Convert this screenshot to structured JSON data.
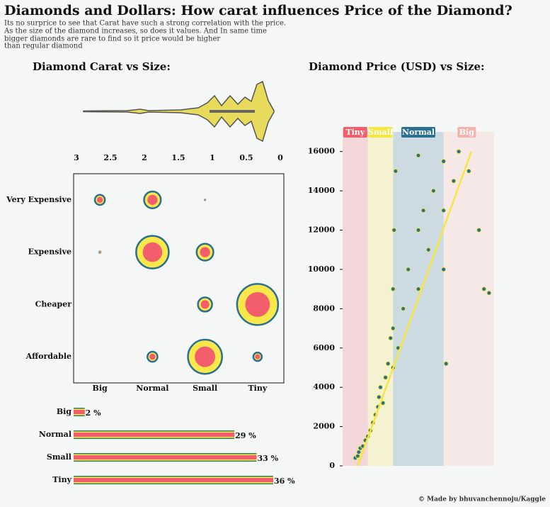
{
  "title": "Diamonds and Dollars: How carat influences Price of the Diamond?",
  "subtitle_lines": [
    "Its no surprice to see that Carat have such a strong correlation with the price.",
    "As the size of the diamond increases, so does it values. And In same time",
    "bigger diamonds are rare to find so it price would be higher",
    "than regular diamond"
  ],
  "credit": "© Made by bhuvanchennoju/Kaggle",
  "chart_data": [
    {
      "type": "violin",
      "title": "Diamond Carat vs Size:",
      "xlim": [
        3,
        0
      ],
      "xticks": [
        3,
        2.5,
        2,
        1.5,
        1,
        0.5,
        0
      ],
      "color": "#e8da5a"
    },
    {
      "type": "bubble",
      "x_categories": [
        "Big",
        "Normal",
        "Small",
        "Tiny"
      ],
      "y_categories": [
        "Very Expensive",
        "Expensive",
        "Cheaper",
        "Affordable"
      ],
      "values": [
        [
          50,
          140,
          2,
          null
        ],
        [
          4,
          530,
          140,
          null
        ],
        [
          null,
          null,
          100,
          840
        ],
        [
          null,
          50,
          580,
          36
        ]
      ],
      "color": "#f9e84a",
      "inner_color": "#f25e6b",
      "edge_color": "#2a7090"
    },
    {
      "type": "hbar",
      "categories": [
        "Big",
        "Normal",
        "Small",
        "Tiny"
      ],
      "values": [
        2,
        29,
        33,
        36
      ],
      "value_labels": [
        "2 %",
        "29 %",
        "33 %",
        "36 %"
      ],
      "color": "#f25e6b",
      "band_color": "#f9e84a",
      "edge_color": "#2e7d5b"
    },
    {
      "type": "scatter",
      "title": "Diamond Price (USD) vs Size:",
      "xlim": [
        0,
        3
      ],
      "ylim": [
        0,
        17000
      ],
      "yticks": [
        0,
        2000,
        4000,
        6000,
        8000,
        10000,
        12000,
        14000,
        16000
      ],
      "bands": [
        "Tiny",
        "Small",
        "Normal",
        "Big"
      ],
      "band_edges": [
        0,
        0.5,
        1,
        2,
        3
      ],
      "band_colors": [
        "#f25e6b",
        "#f5e642",
        "#2a7090",
        "#f4b4ae"
      ],
      "x": [
        0.25,
        0.3,
        0.32,
        0.35,
        0.4,
        0.45,
        0.5,
        0.55,
        0.6,
        0.65,
        0.7,
        0.72,
        0.75,
        0.8,
        0.85,
        0.9,
        0.95,
        1.0,
        1.0,
        1.0,
        1.02,
        1.05,
        1.1,
        1.2,
        1.3,
        1.5,
        1.5,
        1.5,
        1.6,
        1.7,
        1.8,
        2.0,
        2.0,
        2.0,
        2.05,
        2.2,
        2.3,
        2.5,
        2.7,
        2.8,
        2.9
      ],
      "values": [
        400,
        500,
        700,
        900,
        1000,
        1300,
        1500,
        1800,
        2200,
        2600,
        3000,
        3500,
        4000,
        3200,
        4500,
        5200,
        6500,
        5000,
        7000,
        9000,
        12000,
        15000,
        6000,
        8000,
        10000,
        9000,
        12000,
        15800,
        13000,
        11000,
        14000,
        10000,
        15500,
        13000,
        5200,
        14500,
        16000,
        15000,
        12000,
        9000,
        8800
      ],
      "color": "#2a7090",
      "edge_color": "#f5e642",
      "trend": {
        "x": [
          0.3,
          2.55
        ],
        "y": [
          0,
          16000
        ],
        "color": "#f5e642"
      }
    }
  ]
}
